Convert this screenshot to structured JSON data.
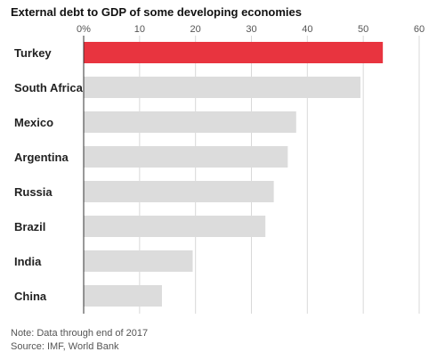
{
  "chart_data": {
    "type": "bar",
    "orientation": "horizontal",
    "title": "External debt to GDP of some developing economies",
    "categories": [
      "Turkey",
      "South Africa",
      "Mexico",
      "Argentina",
      "Russia",
      "Brazil",
      "India",
      "China"
    ],
    "values": [
      53.5,
      49.5,
      38,
      36.5,
      34,
      32.5,
      19.5,
      14
    ],
    "xlim": [
      0,
      60
    ],
    "x_ticks": [
      0,
      10,
      20,
      30,
      40,
      50,
      60
    ],
    "x_tick_labels": [
      "0%",
      "10",
      "20",
      "30",
      "40",
      "50",
      "60"
    ],
    "x_axis_position": "top",
    "grid": true,
    "xlabel": "",
    "ylabel": "",
    "colors": {
      "highlight": "#e8343f",
      "bar": "#dcdcdc",
      "grid": "#d9d9d9",
      "axis": "#333333"
    },
    "highlight_category": "Turkey"
  },
  "note": "Note: Data through end of 2017",
  "source": "Source: IMF, World Bank"
}
